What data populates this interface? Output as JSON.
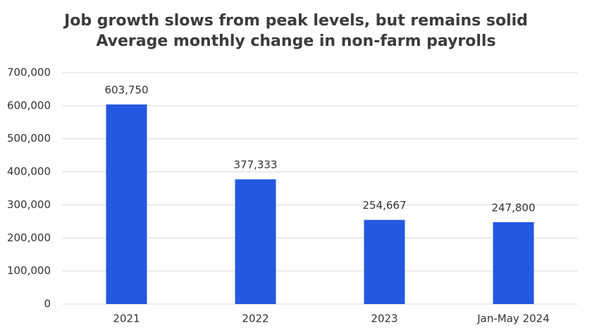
{
  "chart_data": {
    "type": "bar",
    "title": "Job growth slows from peak levels, but remains solid",
    "subtitle": "Average monthly change in non-farm payrolls",
    "categories": [
      "2021",
      "2022",
      "2023",
      "Jan-May 2024"
    ],
    "values": [
      603750,
      377333,
      254667,
      247800
    ],
    "value_labels": [
      "603,750",
      "377,333",
      "254,667",
      "247,800"
    ],
    "color": "#2358e0",
    "ylim": [
      0,
      700000
    ],
    "yticks": [
      0,
      {
        "value": 100000,
        "label": "100,000"
      },
      {
        "value": 200000,
        "label": "200,000"
      },
      {
        "value": 300000,
        "label": "300,000"
      },
      {
        "value": 400000,
        "label": "400,000"
      },
      {
        "value": 500000,
        "label": "500,000"
      },
      {
        "value": 600000,
        "label": "600,000"
      },
      {
        "value": 700000,
        "label": "700,000"
      }
    ],
    "grid": true
  }
}
